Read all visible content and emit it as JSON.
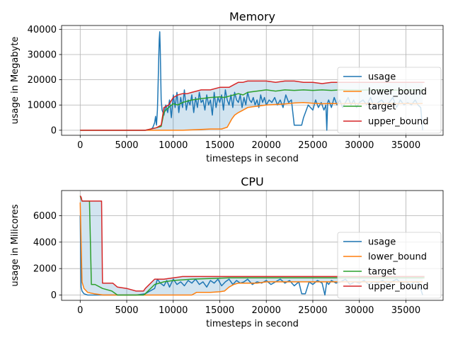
{
  "chart_data": [
    {
      "type": "line",
      "title": "Memory",
      "xlabel": "timesteps in second",
      "ylabel": "usage in Megabyte",
      "xlim": [
        -2000,
        39000
      ],
      "ylim": [
        -2000,
        41500
      ],
      "xticks": [
        0,
        5000,
        10000,
        15000,
        20000,
        25000,
        30000,
        35000
      ],
      "yticks": [
        0,
        10000,
        20000,
        30000,
        40000
      ],
      "grid": true,
      "legend": "lower-right",
      "fill_between": {
        "lower": "lower_bound",
        "upper": "upper_bound",
        "color": "#1f77b4",
        "alpha": 0.2
      },
      "series": [
        {
          "name": "usage",
          "color": "#1f77b4",
          "x": [
            0,
            3000,
            6000,
            7000,
            7500,
            7800,
            8000,
            8100,
            8200,
            8300,
            8350,
            8400,
            8450,
            8500,
            8550,
            8600,
            8700,
            8800,
            9000,
            9200,
            9400,
            9600,
            9800,
            10000,
            10200,
            10400,
            10600,
            10800,
            11000,
            11200,
            11400,
            11600,
            11800,
            12000,
            12200,
            12400,
            12600,
            12800,
            13000,
            13200,
            13400,
            13600,
            13800,
            14000,
            14200,
            14400,
            14600,
            14800,
            15000,
            15200,
            15400,
            15600,
            15800,
            16000,
            16200,
            16400,
            16600,
            16800,
            17000,
            17200,
            17400,
            17600,
            17800,
            18000,
            18200,
            18400,
            18600,
            18800,
            19000,
            19200,
            19400,
            19600,
            19800,
            20000,
            20300,
            20600,
            20900,
            21200,
            21500,
            21800,
            22100,
            22400,
            22700,
            23000,
            23300,
            23600,
            23800,
            24000,
            24500,
            25000,
            25300,
            25600,
            25900,
            26200,
            26400,
            26500,
            26600,
            26700,
            27000,
            27300,
            27600,
            27900,
            28200,
            28500,
            28800,
            29100,
            29400,
            29700,
            30000,
            30400,
            30800,
            31200,
            31600,
            32000,
            32400,
            32800,
            33200,
            33600,
            34000,
            34400,
            34800,
            35200,
            35600,
            36000,
            36300,
            36600,
            36800
          ],
          "y": [
            0,
            0,
            0,
            0,
            200,
            1000,
            3000,
            5500,
            2000,
            8000,
            15000,
            22000,
            30000,
            36000,
            39000,
            32000,
            12000,
            8000,
            6000,
            10000,
            7000,
            12000,
            5000,
            14000,
            9000,
            15000,
            7000,
            13000,
            9000,
            16000,
            8000,
            12000,
            10000,
            14000,
            7000,
            13000,
            9000,
            15000,
            11000,
            12000,
            8000,
            14000,
            10000,
            12000,
            6000,
            15000,
            9000,
            13000,
            11000,
            14000,
            8000,
            16000,
            12000,
            10000,
            14000,
            9000,
            15000,
            12000,
            11000,
            14000,
            9000,
            13000,
            10000,
            15000,
            12000,
            11000,
            13000,
            10000,
            12000,
            9000,
            14000,
            11000,
            13000,
            10000,
            12000,
            11000,
            13000,
            10000,
            12000,
            9000,
            14000,
            11000,
            12000,
            2000,
            2000,
            2000,
            2000,
            5000,
            10000,
            8000,
            12000,
            9000,
            11000,
            8000,
            10000,
            0,
            11000,
            12000,
            9000,
            13000,
            10000,
            12000,
            9000,
            11000,
            13000,
            10000,
            12000,
            9000,
            11000,
            12000,
            10000,
            13000,
            9000,
            11000,
            12000,
            10000,
            11000,
            13000,
            9000,
            12000,
            10000,
            11000,
            10000,
            12000,
            10000,
            9000,
            0
          ]
        },
        {
          "name": "lower_bound",
          "color": "#ff7f0e",
          "x": [
            0,
            7000,
            10000,
            11000,
            13000,
            14000,
            15200,
            15800,
            16000,
            16300,
            16600,
            17000,
            17500,
            18000,
            18500,
            19000,
            20000,
            21000,
            22000,
            23000,
            24000,
            25000,
            26000,
            27000,
            28000,
            29000,
            30000,
            31000,
            32000,
            33000,
            34000,
            35000,
            36000,
            36800
          ],
          "y": [
            0,
            0,
            0,
            0,
            300,
            500,
            500,
            1200,
            2500,
            4500,
            6000,
            7000,
            8000,
            9000,
            9300,
            9500,
            10000,
            10200,
            10400,
            10800,
            11000,
            10700,
            10500,
            10600,
            10500,
            10600,
            10500,
            10600,
            10500,
            10600,
            10500,
            10600,
            10500,
            10600
          ]
        },
        {
          "name": "target",
          "color": "#2ca02c",
          "x": [
            0,
            7000,
            8200,
            8700,
            9000,
            9200,
            9500,
            10000,
            10500,
            11000,
            11500,
            12000,
            13000,
            14000,
            15000,
            15500,
            16000,
            16500,
            17000,
            17500,
            18000,
            19000,
            20000,
            21000,
            22000,
            23000,
            24000,
            25000,
            26000,
            27000,
            28000,
            30000,
            32000,
            34000,
            36000,
            37000
          ],
          "y": [
            0,
            0,
            1000,
            1500,
            7000,
            8000,
            9000,
            10500,
            10000,
            11000,
            11500,
            12000,
            12500,
            13000,
            13200,
            13000,
            13500,
            14000,
            14500,
            14000,
            15000,
            15500,
            16000,
            15500,
            16000,
            15800,
            16000,
            15800,
            16000,
            15800,
            16000,
            15900,
            16000,
            15900,
            16000,
            16000
          ]
        },
        {
          "name": "upper_bound",
          "color": "#d62728",
          "x": [
            0,
            7000,
            8200,
            8700,
            9000,
            9500,
            10000,
            10500,
            11000,
            11500,
            12000,
            13000,
            14000,
            15000,
            16000,
            16500,
            17000,
            17500,
            18000,
            19000,
            20000,
            21000,
            22000,
            23000,
            24000,
            25000,
            26000,
            27000,
            28000,
            30000,
            32000,
            34000,
            36000,
            37000
          ],
          "y": [
            0,
            0,
            1000,
            2000,
            9000,
            10000,
            13000,
            14000,
            14500,
            14500,
            15000,
            16000,
            16000,
            17000,
            17000,
            18000,
            19000,
            19000,
            19500,
            19500,
            19500,
            19000,
            19500,
            19500,
            19000,
            19000,
            18500,
            19000,
            19000,
            19000,
            19000,
            19000,
            19000,
            19000
          ]
        }
      ]
    },
    {
      "type": "line",
      "title": "CPU",
      "xlabel": "timesteps in second",
      "ylabel": "usage in Milicores",
      "xlim": [
        -2000,
        39000
      ],
      "ylim": [
        -400,
        7900
      ],
      "xticks": [
        0,
        5000,
        10000,
        15000,
        20000,
        25000,
        30000,
        35000
      ],
      "yticks": [
        0,
        2000,
        4000,
        6000
      ],
      "grid": true,
      "legend": "lower-right",
      "fill_between": {
        "lower": "lower_bound",
        "upper": "upper_bound",
        "color": "#1f77b4",
        "alpha": 0.2
      },
      "series": [
        {
          "name": "usage",
          "color": "#1f77b4",
          "x": [
            0,
            50,
            100,
            200,
            400,
            800,
            2000,
            4000,
            6000,
            7000,
            7500,
            8000,
            8300,
            8600,
            9000,
            9300,
            9600,
            10000,
            10400,
            10800,
            11200,
            11600,
            12000,
            12400,
            12800,
            13200,
            13600,
            14000,
            14400,
            14800,
            15200,
            15600,
            16000,
            16400,
            16800,
            17200,
            17600,
            18000,
            18500,
            19000,
            19500,
            20000,
            20500,
            21000,
            21500,
            22000,
            22500,
            23000,
            23500,
            23800,
            24200,
            24600,
            25000,
            25500,
            26000,
            26300,
            26500,
            26700,
            27000,
            27500,
            28000,
            28500,
            29000,
            29500,
            30000,
            30500,
            31000,
            31500,
            32000,
            32500,
            33000,
            33500,
            34000,
            34500,
            35000,
            35500,
            36000,
            36400,
            36800
          ],
          "y": [
            6000,
            3000,
            600,
            300,
            100,
            0,
            0,
            0,
            0,
            100,
            300,
            500,
            1200,
            900,
            700,
            1100,
            600,
            1200,
            800,
            1000,
            700,
            1100,
            900,
            1200,
            800,
            1000,
            600,
            1100,
            900,
            1200,
            700,
            1000,
            1200,
            800,
            1100,
            900,
            1000,
            1200,
            800,
            1000,
            900,
            1100,
            800,
            1000,
            1200,
            900,
            1100,
            700,
            1000,
            100,
            100,
            1000,
            800,
            1100,
            900,
            0,
            1000,
            800,
            1100,
            900,
            1000,
            1200,
            800,
            1000,
            900,
            1100,
            800,
            1000,
            900,
            1100,
            800,
            1000,
            1200,
            900,
            1000,
            800,
            1000,
            900,
            0
          ]
        },
        {
          "name": "lower_bound",
          "color": "#ff7f0e",
          "x": [
            0,
            200,
            400,
            800,
            1500,
            2500,
            4000,
            6000,
            8000,
            10000,
            12000,
            12500,
            14000,
            15000,
            15500,
            16000,
            16500,
            17000,
            18000,
            19000,
            20000,
            22000,
            24000,
            26000,
            28000,
            30000,
            32000,
            34000,
            36000,
            36800
          ],
          "y": [
            7000,
            1000,
            500,
            200,
            100,
            0,
            0,
            0,
            0,
            0,
            0,
            200,
            200,
            250,
            300,
            600,
            800,
            900,
            900,
            900,
            1000,
            1000,
            1000,
            1000,
            1000,
            1000,
            1000,
            1000,
            1000,
            1000
          ]
        },
        {
          "name": "target",
          "color": "#2ca02c",
          "x": [
            0,
            200,
            400,
            800,
            1000,
            1200,
            1600,
            2400,
            3400,
            4000,
            6800,
            7000,
            8000,
            9000,
            10000,
            12000,
            16000,
            20000,
            25000,
            30000,
            35000,
            37000
          ],
          "y": [
            7500,
            7100,
            7100,
            7100,
            7100,
            800,
            800,
            500,
            300,
            0,
            0,
            100,
            800,
            1000,
            1100,
            1200,
            1300,
            1300,
            1300,
            1300,
            1300,
            1300
          ]
        },
        {
          "name": "upper_bound",
          "color": "#d62728",
          "x": [
            0,
            100,
            200,
            2300,
            2400,
            3500,
            4000,
            5000,
            6000,
            6800,
            7000,
            8000,
            9000,
            10000,
            11000,
            12000,
            16000,
            20000,
            25000,
            30000,
            35000,
            37000
          ],
          "y": [
            7500,
            7400,
            7100,
            7100,
            900,
            900,
            600,
            500,
            300,
            300,
            500,
            1200,
            1200,
            1300,
            1400,
            1400,
            1400,
            1400,
            1400,
            1400,
            1400,
            1400
          ]
        }
      ]
    }
  ]
}
